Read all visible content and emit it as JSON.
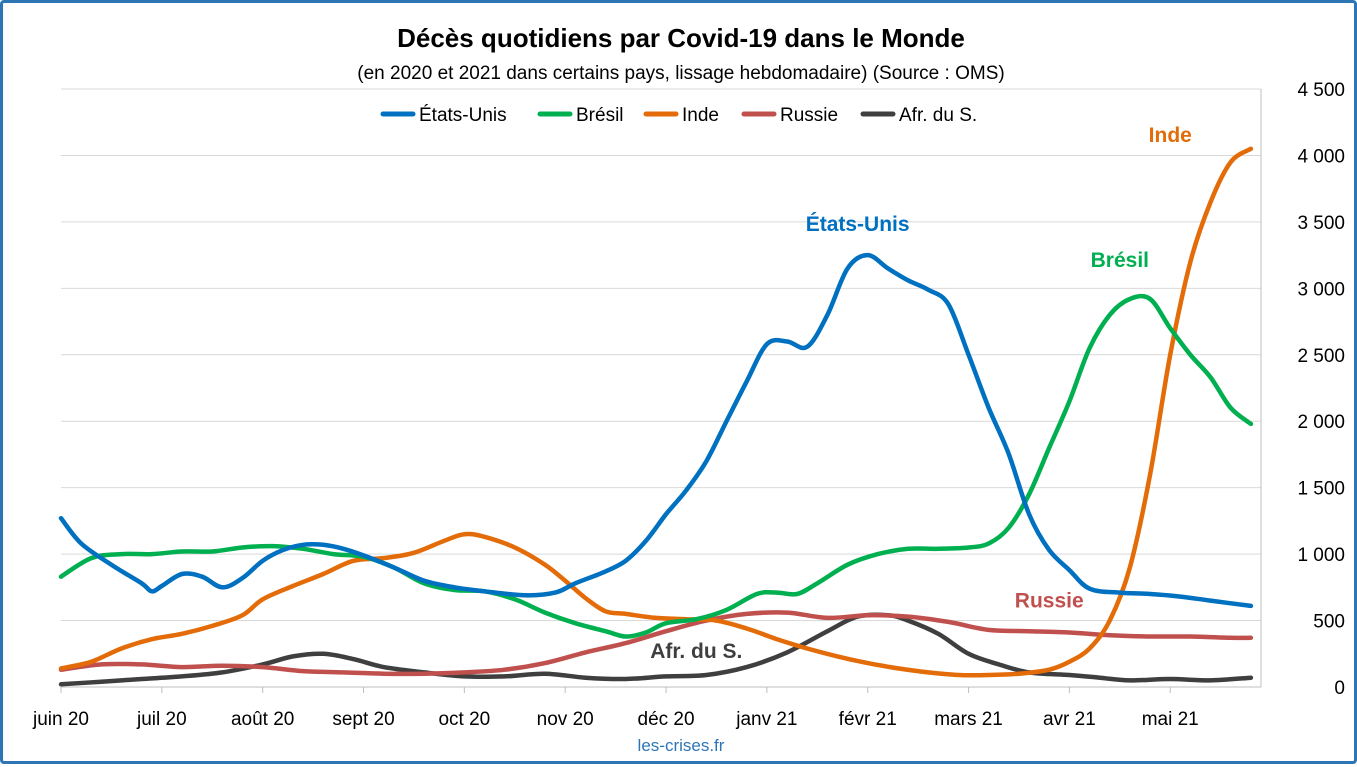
{
  "chart_data": {
    "type": "line",
    "title": "Décès quotidiens par Covid-19 dans le Monde",
    "subtitle": "(en 2020 et 2021 dans certains pays, lissage hebdomadaire) (Source : OMS)",
    "source": "les-crises.fr",
    "y_axis_side": "right",
    "ylim": [
      0,
      4500
    ],
    "y_ticks": [
      {
        "value": 0,
        "label": "0"
      },
      {
        "value": 500,
        "label": "500"
      },
      {
        "value": 1000,
        "label": "1 000"
      },
      {
        "value": 1500,
        "label": "1 500"
      },
      {
        "value": 2000,
        "label": "2 000"
      },
      {
        "value": 2500,
        "label": "2 500"
      },
      {
        "value": 3000,
        "label": "3 000"
      },
      {
        "value": 3500,
        "label": "3 500"
      },
      {
        "value": 4000,
        "label": "4 000"
      },
      {
        "value": 4500,
        "label": "4 500"
      }
    ],
    "x_unit": "months since 2020-06-01",
    "xlim": [
      0,
      11.9
    ],
    "x_ticks": [
      {
        "x": 0,
        "label": "juin 20"
      },
      {
        "x": 1,
        "label": "juil 20"
      },
      {
        "x": 2,
        "label": "août 20"
      },
      {
        "x": 3,
        "label": "sept 20"
      },
      {
        "x": 4,
        "label": "oct 20"
      },
      {
        "x": 5,
        "label": "nov 20"
      },
      {
        "x": 6,
        "label": "déc 20"
      },
      {
        "x": 7,
        "label": "janv 21"
      },
      {
        "x": 8,
        "label": "févr 21"
      },
      {
        "x": 9,
        "label": "mars 21"
      },
      {
        "x": 10,
        "label": "avr 21"
      },
      {
        "x": 11,
        "label": "mai 21"
      }
    ],
    "grid": "horizontal",
    "legend_position": "top-center",
    "series": [
      {
        "name": "États-Unis",
        "color": "#0070c0",
        "points": [
          [
            0,
            1270
          ],
          [
            0.2,
            1080
          ],
          [
            0.5,
            920
          ],
          [
            0.8,
            780
          ],
          [
            0.9,
            720
          ],
          [
            1.0,
            760
          ],
          [
            1.2,
            850
          ],
          [
            1.4,
            830
          ],
          [
            1.6,
            750
          ],
          [
            1.8,
            820
          ],
          [
            2.0,
            950
          ],
          [
            2.2,
            1030
          ],
          [
            2.4,
            1070
          ],
          [
            2.6,
            1070
          ],
          [
            2.8,
            1040
          ],
          [
            3.0,
            990
          ],
          [
            3.3,
            900
          ],
          [
            3.6,
            800
          ],
          [
            3.9,
            750
          ],
          [
            4.2,
            720
          ],
          [
            4.6,
            690
          ],
          [
            4.9,
            710
          ],
          [
            5.1,
            780
          ],
          [
            5.4,
            870
          ],
          [
            5.6,
            950
          ],
          [
            5.8,
            1100
          ],
          [
            6.0,
            1300
          ],
          [
            6.2,
            1480
          ],
          [
            6.4,
            1700
          ],
          [
            6.6,
            2000
          ],
          [
            6.8,
            2300
          ],
          [
            7.0,
            2580
          ],
          [
            7.2,
            2600
          ],
          [
            7.4,
            2560
          ],
          [
            7.6,
            2800
          ],
          [
            7.8,
            3150
          ],
          [
            8.0,
            3250
          ],
          [
            8.2,
            3150
          ],
          [
            8.4,
            3060
          ],
          [
            8.6,
            2990
          ],
          [
            8.8,
            2880
          ],
          [
            9.0,
            2500
          ],
          [
            9.2,
            2100
          ],
          [
            9.4,
            1750
          ],
          [
            9.6,
            1300
          ],
          [
            9.8,
            1030
          ],
          [
            10.0,
            880
          ],
          [
            10.2,
            740
          ],
          [
            10.5,
            710
          ],
          [
            10.8,
            700
          ],
          [
            11.1,
            680
          ],
          [
            11.4,
            650
          ],
          [
            11.8,
            610
          ]
        ]
      },
      {
        "name": "Brésil",
        "color": "#00b050",
        "points": [
          [
            0,
            830
          ],
          [
            0.3,
            970
          ],
          [
            0.6,
            1000
          ],
          [
            0.9,
            1000
          ],
          [
            1.2,
            1020
          ],
          [
            1.5,
            1020
          ],
          [
            1.8,
            1050
          ],
          [
            2.1,
            1060
          ],
          [
            2.4,
            1040
          ],
          [
            2.7,
            1000
          ],
          [
            3.0,
            980
          ],
          [
            3.3,
            900
          ],
          [
            3.6,
            780
          ],
          [
            3.9,
            730
          ],
          [
            4.2,
            720
          ],
          [
            4.5,
            660
          ],
          [
            4.8,
            560
          ],
          [
            5.1,
            480
          ],
          [
            5.4,
            420
          ],
          [
            5.6,
            380
          ],
          [
            5.8,
            410
          ],
          [
            6.0,
            480
          ],
          [
            6.3,
            510
          ],
          [
            6.6,
            580
          ],
          [
            6.9,
            700
          ],
          [
            7.1,
            710
          ],
          [
            7.3,
            700
          ],
          [
            7.5,
            780
          ],
          [
            7.8,
            920
          ],
          [
            8.1,
            1000
          ],
          [
            8.4,
            1040
          ],
          [
            8.7,
            1040
          ],
          [
            9.0,
            1050
          ],
          [
            9.2,
            1080
          ],
          [
            9.4,
            1200
          ],
          [
            9.6,
            1450
          ],
          [
            9.8,
            1800
          ],
          [
            10.0,
            2150
          ],
          [
            10.2,
            2550
          ],
          [
            10.4,
            2800
          ],
          [
            10.6,
            2920
          ],
          [
            10.8,
            2920
          ],
          [
            11.0,
            2700
          ],
          [
            11.2,
            2500
          ],
          [
            11.4,
            2330
          ],
          [
            11.6,
            2100
          ],
          [
            11.8,
            1980
          ]
        ]
      },
      {
        "name": "Inde",
        "color": "#e36c09",
        "points": [
          [
            0,
            140
          ],
          [
            0.3,
            190
          ],
          [
            0.6,
            290
          ],
          [
            0.9,
            360
          ],
          [
            1.2,
            400
          ],
          [
            1.5,
            460
          ],
          [
            1.8,
            540
          ],
          [
            2.0,
            660
          ],
          [
            2.3,
            760
          ],
          [
            2.6,
            850
          ],
          [
            2.9,
            950
          ],
          [
            3.2,
            970
          ],
          [
            3.5,
            1010
          ],
          [
            3.8,
            1100
          ],
          [
            4.0,
            1150
          ],
          [
            4.2,
            1130
          ],
          [
            4.5,
            1050
          ],
          [
            4.8,
            920
          ],
          [
            5.0,
            800
          ],
          [
            5.2,
            670
          ],
          [
            5.4,
            570
          ],
          [
            5.6,
            550
          ],
          [
            5.9,
            520
          ],
          [
            6.2,
            510
          ],
          [
            6.5,
            500
          ],
          [
            6.8,
            440
          ],
          [
            7.1,
            360
          ],
          [
            7.4,
            290
          ],
          [
            7.7,
            230
          ],
          [
            8.0,
            180
          ],
          [
            8.3,
            140
          ],
          [
            8.6,
            110
          ],
          [
            8.9,
            90
          ],
          [
            9.2,
            90
          ],
          [
            9.5,
            100
          ],
          [
            9.8,
            130
          ],
          [
            10.0,
            190
          ],
          [
            10.2,
            290
          ],
          [
            10.4,
            500
          ],
          [
            10.6,
            900
          ],
          [
            10.8,
            1600
          ],
          [
            11.0,
            2500
          ],
          [
            11.2,
            3200
          ],
          [
            11.4,
            3650
          ],
          [
            11.6,
            3950
          ],
          [
            11.8,
            4050
          ]
        ]
      },
      {
        "name": "Russie",
        "color": "#c0504d",
        "points": [
          [
            0,
            130
          ],
          [
            0.4,
            170
          ],
          [
            0.8,
            170
          ],
          [
            1.2,
            150
          ],
          [
            1.6,
            160
          ],
          [
            2.0,
            150
          ],
          [
            2.4,
            120
          ],
          [
            2.8,
            110
          ],
          [
            3.2,
            100
          ],
          [
            3.6,
            100
          ],
          [
            4.0,
            110
          ],
          [
            4.4,
            130
          ],
          [
            4.8,
            180
          ],
          [
            5.2,
            260
          ],
          [
            5.6,
            330
          ],
          [
            6.0,
            420
          ],
          [
            6.4,
            500
          ],
          [
            6.8,
            550
          ],
          [
            7.2,
            560
          ],
          [
            7.6,
            520
          ],
          [
            8.0,
            540
          ],
          [
            8.4,
            530
          ],
          [
            8.8,
            490
          ],
          [
            9.2,
            430
          ],
          [
            9.6,
            420
          ],
          [
            10.0,
            410
          ],
          [
            10.4,
            390
          ],
          [
            10.8,
            380
          ],
          [
            11.2,
            380
          ],
          [
            11.6,
            370
          ],
          [
            11.8,
            370
          ]
        ]
      },
      {
        "name": "Afr. du S.",
        "color": "#3f3f3f",
        "points": [
          [
            0,
            20
          ],
          [
            0.4,
            40
          ],
          [
            0.8,
            60
          ],
          [
            1.2,
            80
          ],
          [
            1.6,
            110
          ],
          [
            2.0,
            170
          ],
          [
            2.3,
            230
          ],
          [
            2.6,
            250
          ],
          [
            2.9,
            210
          ],
          [
            3.2,
            150
          ],
          [
            3.6,
            110
          ],
          [
            4.0,
            80
          ],
          [
            4.4,
            80
          ],
          [
            4.8,
            100
          ],
          [
            5.2,
            70
          ],
          [
            5.6,
            60
          ],
          [
            6.0,
            80
          ],
          [
            6.4,
            90
          ],
          [
            6.8,
            150
          ],
          [
            7.2,
            260
          ],
          [
            7.6,
            420
          ],
          [
            7.9,
            530
          ],
          [
            8.2,
            540
          ],
          [
            8.4,
            500
          ],
          [
            8.7,
            400
          ],
          [
            9.0,
            250
          ],
          [
            9.3,
            170
          ],
          [
            9.6,
            110
          ],
          [
            10.0,
            90
          ],
          [
            10.3,
            70
          ],
          [
            10.6,
            50
          ],
          [
            11.0,
            60
          ],
          [
            11.4,
            50
          ],
          [
            11.8,
            70
          ]
        ]
      }
    ],
    "annotations": [
      {
        "text": "Inde",
        "x": 11.0,
        "y": 4100,
        "color": "#e36c09"
      },
      {
        "text": "États-Unis",
        "x": 7.9,
        "y": 3430,
        "color": "#0070c0"
      },
      {
        "text": "Brésil",
        "x": 10.5,
        "y": 3160,
        "color": "#00b050"
      },
      {
        "text": "Russie",
        "x": 9.8,
        "y": 600,
        "color": "#c0504d"
      },
      {
        "text": "Afr. du S.",
        "x": 6.3,
        "y": 220,
        "color": "#3f3f3f"
      }
    ]
  }
}
